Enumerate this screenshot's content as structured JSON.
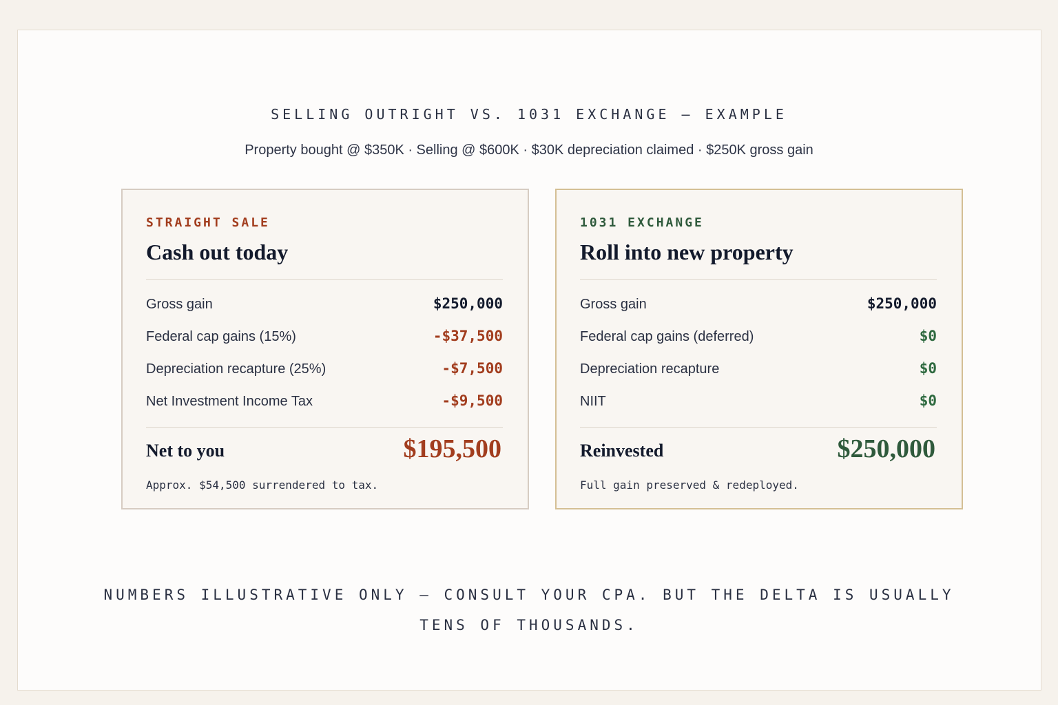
{
  "header": {
    "title": "SELLING OUTRIGHT VS. 1031 EXCHANGE — EXAMPLE",
    "subtitle": "Property bought @ $350K · Selling @ $600K · $30K depreciation claimed · $250K gross gain"
  },
  "cards": [
    {
      "eyebrow": "STRAIGHT SALE",
      "title": "Cash out today",
      "rows": [
        [
          "Gross gain",
          "$250,000"
        ],
        [
          "Federal cap gains (15%)",
          "-$37,500"
        ],
        [
          "Depreciation recapture (25%)",
          "-$7,500"
        ],
        [
          "Net Investment Income Tax",
          "-$9,500"
        ]
      ],
      "total_label": "Net to you",
      "total_value": "$195,500",
      "note": "Approx. $54,500 surrendered to tax."
    },
    {
      "eyebrow": "1031 EXCHANGE",
      "title": "Roll into new property",
      "rows": [
        [
          "Gross gain",
          "$250,000"
        ],
        [
          "Federal cap gains (deferred)",
          "$0"
        ],
        [
          "Depreciation recapture",
          "$0"
        ],
        [
          "NIIT",
          "$0"
        ]
      ],
      "total_label": "Reinvested",
      "total_value": "$250,000",
      "note": "Full gain preserved & redeployed."
    }
  ],
  "footer": "NUMBERS ILLUSTRATIVE ONLY — CONSULT YOUR CPA. BUT THE DELTA IS USUALLY TENS OF THOUSANDS."
}
